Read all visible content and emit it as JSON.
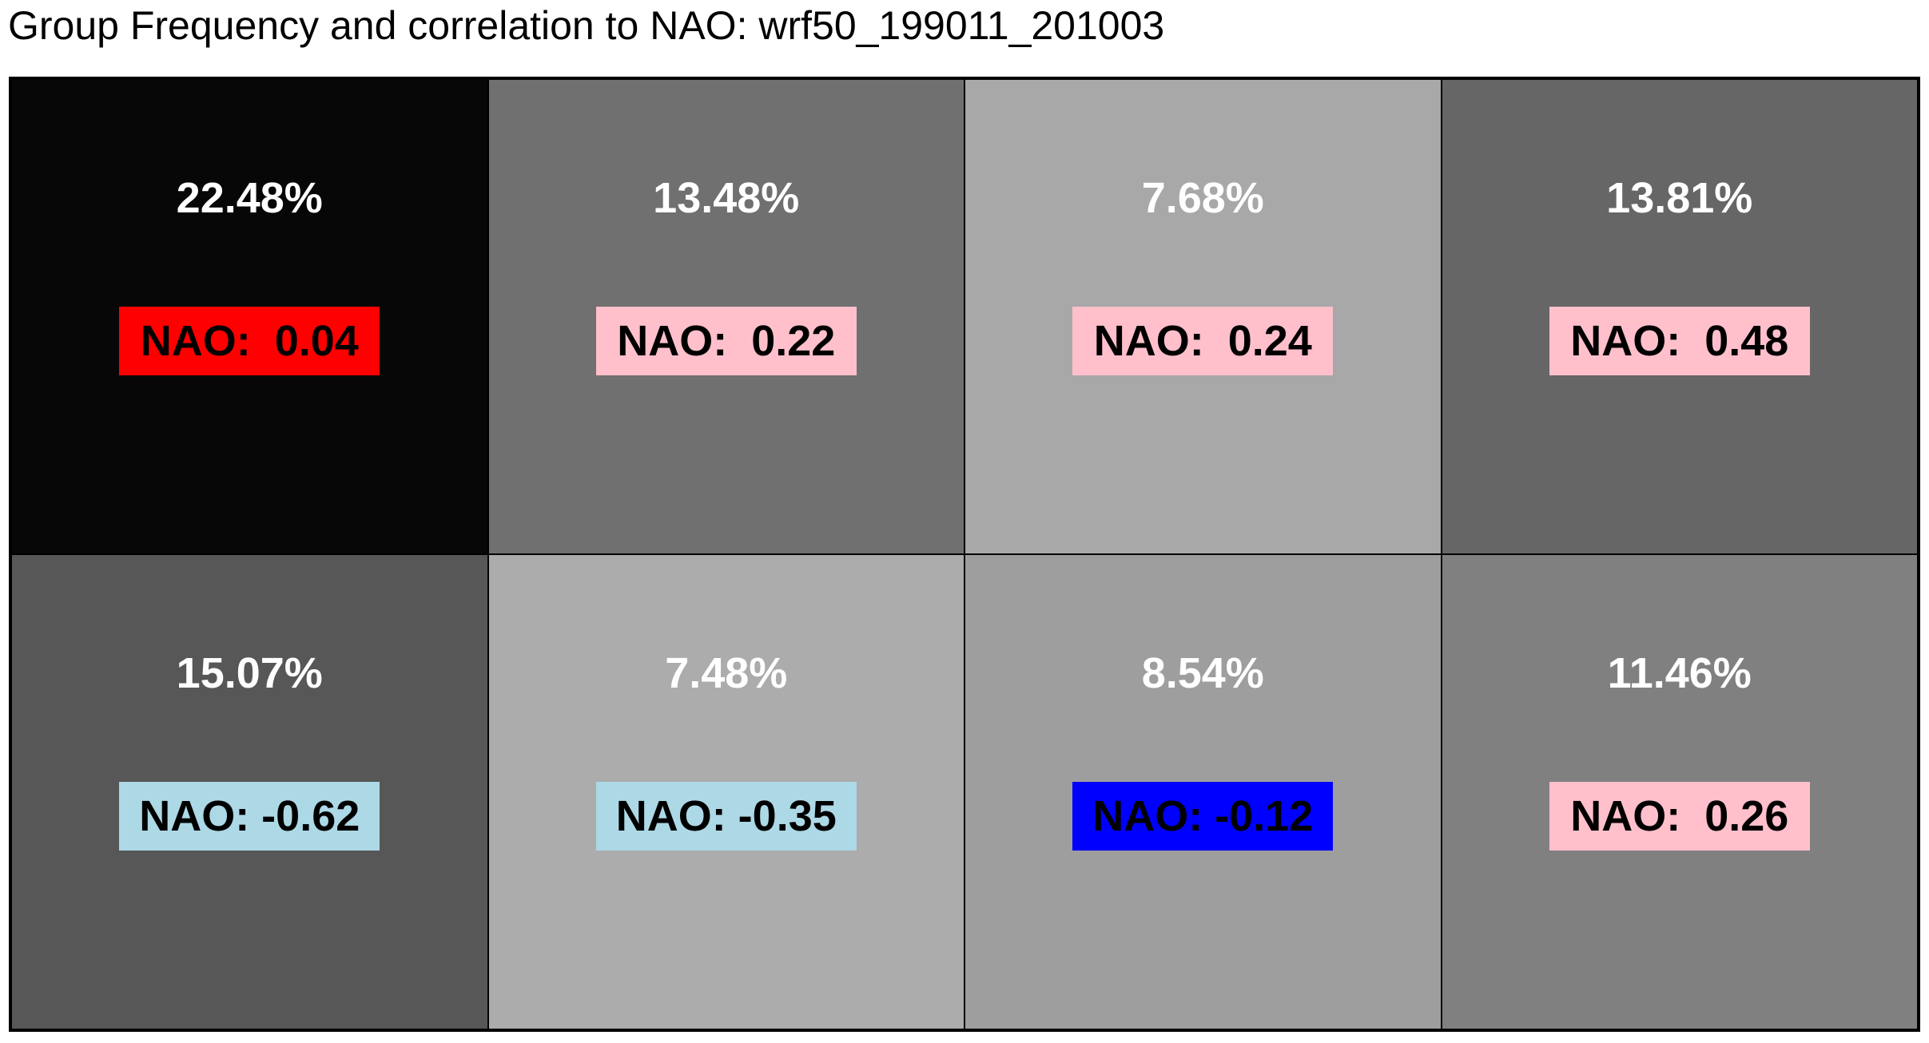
{
  "title": "Group Frequency and correlation to NAO: wrf50_199011_201003",
  "chart_data": {
    "type": "heatmap",
    "title": "Group Frequency and correlation to NAO: wrf50_199011_201003",
    "rows": 2,
    "cols": 4,
    "cells": [
      {
        "frequency_pct": 22.48,
        "frequency_label": "22.48%",
        "nao": 0.04,
        "nao_label": "NAO:  0.04",
        "cell_color": "#070707",
        "nao_color": "#ff0000"
      },
      {
        "frequency_pct": 13.48,
        "frequency_label": "13.48%",
        "nao": 0.22,
        "nao_label": "NAO:  0.22",
        "cell_color": "#707070",
        "nao_color": "#ffc0cb"
      },
      {
        "frequency_pct": 7.68,
        "frequency_label": "7.68%",
        "nao": 0.24,
        "nao_label": "NAO:  0.24",
        "cell_color": "#a8a8a8",
        "nao_color": "#ffc0cb"
      },
      {
        "frequency_pct": 13.81,
        "frequency_label": "13.81%",
        "nao": 0.48,
        "nao_label": "NAO:  0.48",
        "cell_color": "#666666",
        "nao_color": "#ffc0cb"
      },
      {
        "frequency_pct": 15.07,
        "frequency_label": "15.07%",
        "nao": -0.62,
        "nao_label": "NAO: -0.62",
        "cell_color": "#575757",
        "nao_color": "#add8e6"
      },
      {
        "frequency_pct": 7.48,
        "frequency_label": "7.48%",
        "nao": -0.35,
        "nao_label": "NAO: -0.35",
        "cell_color": "#acacac",
        "nao_color": "#add8e6"
      },
      {
        "frequency_pct": 8.54,
        "frequency_label": "8.54%",
        "nao": -0.12,
        "nao_label": "NAO: -0.12",
        "cell_color": "#9e9e9e",
        "nao_color": "#0000ff"
      },
      {
        "frequency_pct": 11.46,
        "frequency_label": "11.46%",
        "nao": 0.26,
        "nao_label": "NAO:  0.26",
        "cell_color": "#808080",
        "nao_color": "#ffc0cb"
      }
    ]
  }
}
